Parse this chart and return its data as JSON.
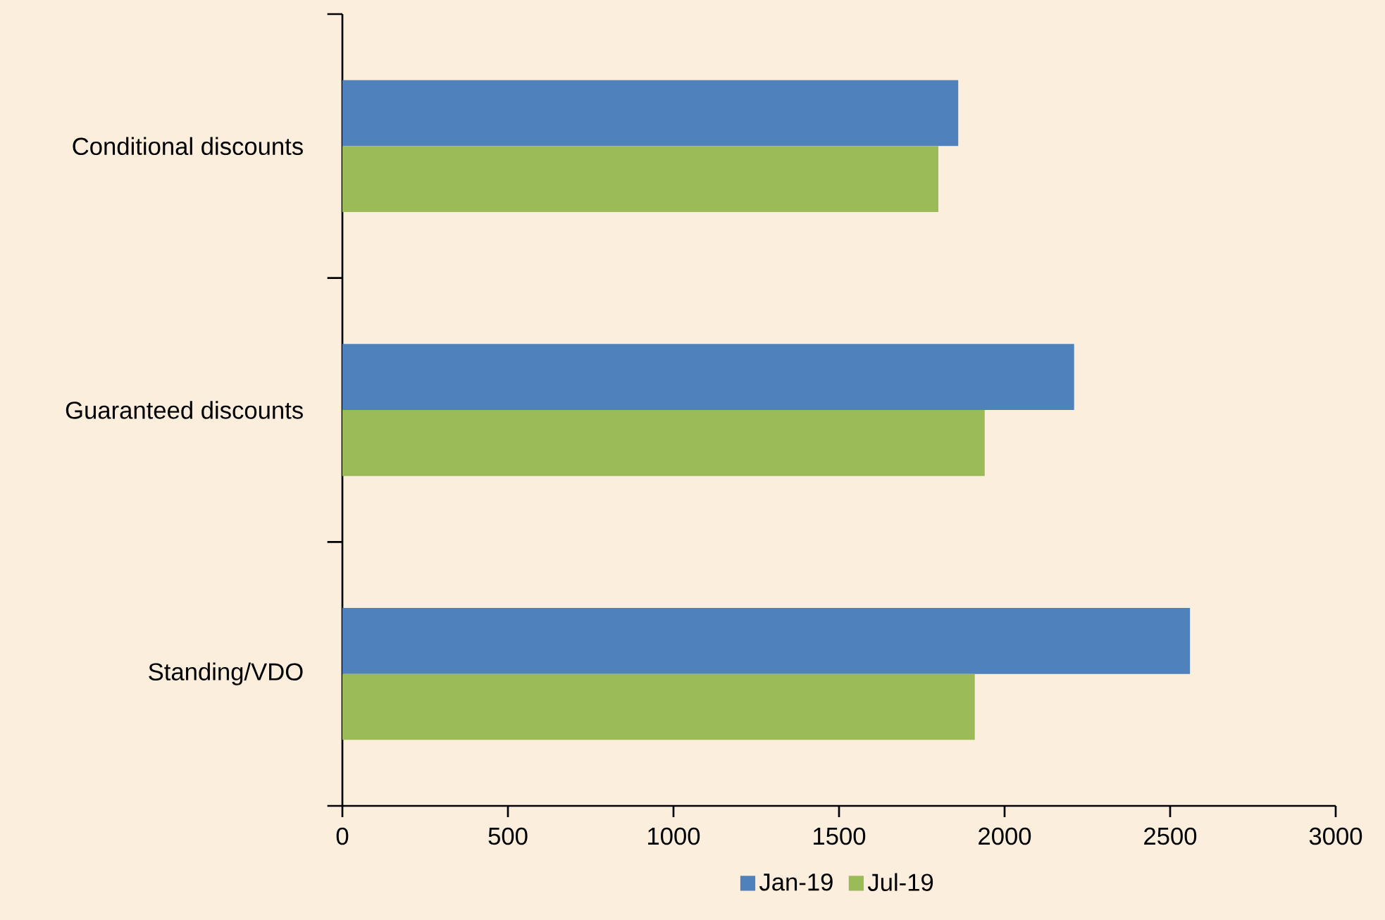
{
  "chart_data": {
    "type": "bar",
    "orientation": "horizontal",
    "categories": [
      "Conditional discounts",
      "Guaranteed discounts",
      "Standing/VDO"
    ],
    "series": [
      {
        "name": "Jan-19",
        "color": "#4f81bd",
        "values": [
          1860,
          2210,
          2560
        ]
      },
      {
        "name": "Jul-19",
        "color": "#9bbb59",
        "values": [
          1800,
          1940,
          1910
        ]
      }
    ],
    "xlim": [
      0,
      3000
    ],
    "xticks": [
      0,
      500,
      1000,
      1500,
      2000,
      2500,
      3000
    ],
    "legend": "bottom",
    "grid": false
  }
}
